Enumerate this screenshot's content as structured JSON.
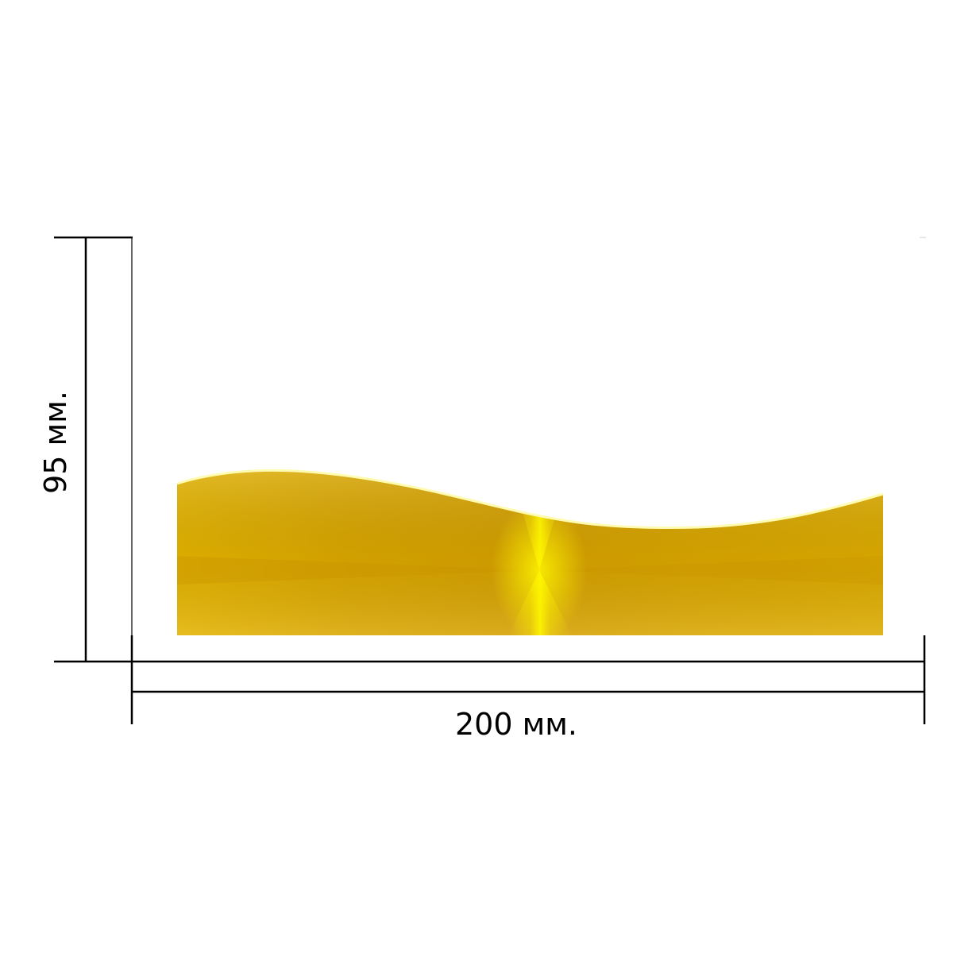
{
  "dimensions": {
    "width_label": "200 мм.",
    "height_label": "95 мм."
  },
  "colors": {
    "line": "#000000",
    "background": "#ffffff",
    "gold_dark": "#d29a00",
    "gold_mid": "#e2b100",
    "gold_light": "#fff200",
    "edge_highlight": "#fffbb0"
  }
}
